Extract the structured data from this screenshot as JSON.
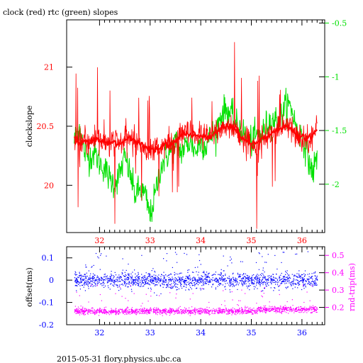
{
  "title": "clock (red) rtc (green) slopes",
  "footer": "2015-05-31 flory.physics.ubc.ca",
  "colors": {
    "red": "#ff0000",
    "green": "#00e000",
    "blue": "#0000ff",
    "magenta": "#ff00ff",
    "black": "#000000"
  },
  "chart_data": [
    {
      "type": "line",
      "xlabel": "",
      "ylabel": "clockslope",
      "y2label": "",
      "xlim": [
        31.35,
        36.45
      ],
      "ylim": [
        19.6,
        21.4
      ],
      "y2lim": [
        -2.45,
        -0.47
      ],
      "xticks": [
        "32",
        "33",
        "34",
        "35",
        "36"
      ],
      "yticks": [
        "20",
        "20.5",
        "21"
      ],
      "y2ticks": [
        "-0.5",
        "-1",
        "-1.5",
        "-2"
      ],
      "grid": false,
      "series": [
        {
          "name": "clock",
          "axis": "left",
          "color": "#ff0000",
          "x": [
            31.5,
            31.6,
            31.7,
            31.8,
            31.9,
            32.0,
            32.1,
            32.2,
            32.3,
            32.4,
            32.5,
            32.6,
            32.7,
            32.8,
            32.9,
            33.0,
            33.1,
            33.2,
            33.3,
            33.4,
            33.5,
            33.6,
            33.7,
            33.8,
            33.9,
            34.0,
            34.1,
            34.2,
            34.3,
            34.4,
            34.5,
            34.6,
            34.7,
            34.8,
            34.9,
            35.0,
            35.1,
            35.2,
            35.3,
            35.4,
            35.5,
            35.6,
            35.7,
            35.8,
            35.9,
            36.0,
            36.1,
            36.2,
            36.3
          ],
          "y": [
            20.4,
            20.35,
            20.38,
            20.36,
            20.4,
            20.37,
            20.36,
            20.34,
            20.38,
            20.35,
            20.38,
            20.4,
            20.37,
            20.36,
            20.32,
            20.3,
            20.3,
            20.32,
            20.35,
            20.34,
            20.38,
            20.42,
            20.44,
            20.43,
            20.42,
            20.42,
            20.4,
            20.42,
            20.45,
            20.48,
            20.5,
            20.5,
            20.47,
            20.4,
            20.38,
            20.35,
            20.36,
            20.38,
            20.42,
            20.44,
            20.46,
            20.48,
            20.5,
            20.47,
            20.42,
            20.4,
            20.4,
            20.42,
            20.48
          ]
        },
        {
          "name": "rtc",
          "axis": "right",
          "color": "#00e000",
          "x": [
            31.5,
            31.6,
            31.7,
            31.8,
            31.9,
            32.0,
            32.1,
            32.2,
            32.3,
            32.4,
            32.5,
            32.6,
            32.7,
            32.8,
            32.9,
            33.0,
            33.1,
            33.2,
            33.3,
            33.4,
            33.5,
            33.6,
            33.7,
            33.8,
            33.9,
            34.0,
            34.1,
            34.2,
            34.3,
            34.4,
            34.5,
            34.6,
            34.7,
            34.8,
            34.9,
            35.0,
            35.1,
            35.2,
            35.3,
            35.4,
            35.5,
            35.6,
            35.7,
            35.8,
            35.9,
            36.0,
            36.1,
            36.2,
            36.3
          ],
          "y": [
            -1.6,
            -1.45,
            -1.7,
            -1.75,
            -1.7,
            -1.8,
            -1.85,
            -1.95,
            -2.0,
            -1.9,
            -1.75,
            -1.9,
            -2.1,
            -2.05,
            -2.1,
            -2.3,
            -2.1,
            -1.85,
            -1.75,
            -1.7,
            -1.6,
            -1.7,
            -1.65,
            -1.6,
            -1.7,
            -1.6,
            -1.65,
            -1.55,
            -1.5,
            -1.35,
            -1.3,
            -1.35,
            -1.45,
            -1.5,
            -1.55,
            -1.6,
            -1.55,
            -1.55,
            -1.45,
            -1.4,
            -1.4,
            -1.35,
            -1.25,
            -1.3,
            -1.5,
            -1.55,
            -1.7,
            -1.9,
            -1.75
          ]
        }
      ]
    },
    {
      "type": "scatter",
      "xlabel": "",
      "ylabel": "offset(ms)",
      "y2label": "rnd-trip(ms)",
      "xlim": [
        31.35,
        36.45
      ],
      "ylim": [
        -0.2,
        0.15
      ],
      "y2lim": [
        0.1,
        0.55
      ],
      "xticks": [
        "32",
        "33",
        "34",
        "35",
        "36"
      ],
      "yticks": [
        "0.1",
        "0",
        "-0.1",
        "-0.2"
      ],
      "y2ticks": [
        "0.5",
        "0.4",
        "0.3",
        "0.2"
      ],
      "grid": false,
      "series": [
        {
          "name": "offset",
          "axis": "left",
          "color": "#0000ff",
          "mean": 0.0,
          "spread": 0.035
        },
        {
          "name": "rnd-trip",
          "axis": "right",
          "color": "#ff00ff",
          "segments": [
            {
              "x": [
                31.5,
                35.1
              ],
              "mean": 0.18
            },
            {
              "x": [
                35.1,
                36.3
              ],
              "mean": 0.19
            }
          ],
          "spread": 0.015
        }
      ]
    }
  ]
}
